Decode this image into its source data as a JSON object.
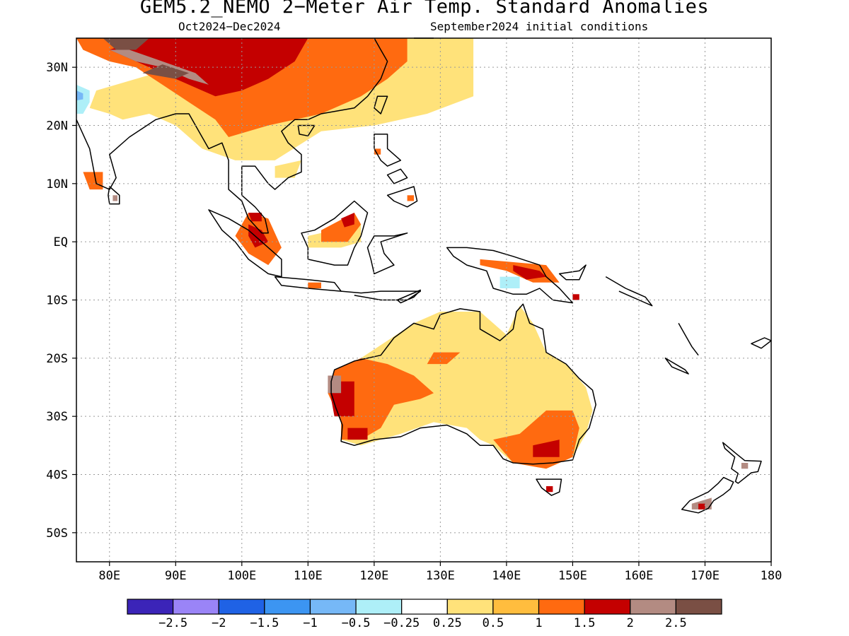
{
  "title": "GEM5.2_NEMO 2−Meter Air Temp. Standard Anomalies",
  "period": "Oct2024−Dec2024",
  "init_conditions": "September2024 initial conditions",
  "lat_labels": [
    "30N",
    "20N",
    "10N",
    "EQ",
    "10S",
    "20S",
    "30S",
    "40S",
    "50S"
  ],
  "lat_values": [
    30,
    20,
    10,
    0,
    -10,
    -20,
    -30,
    -40,
    -50
  ],
  "lon_labels": [
    "80E",
    "90E",
    "100E",
    "110E",
    "120E",
    "130E",
    "140E",
    "150E",
    "160E",
    "170E",
    "180"
  ],
  "lon_values": [
    80,
    90,
    100,
    110,
    120,
    130,
    140,
    150,
    160,
    170,
    180
  ],
  "map_extent": {
    "lon": [
      75,
      180
    ],
    "lat": [
      -55,
      35
    ]
  },
  "colorbar": {
    "colors": [
      "#3b24b8",
      "#9a84f7",
      "#1f62e5",
      "#3c95f2",
      "#76b8f7",
      "#aeeff8",
      "#ffffff",
      "#ffe27a",
      "#ffbd3e",
      "#ff6a10",
      "#c40000",
      "#b38b82",
      "#7a4f44"
    ],
    "labels": [
      "−2.5",
      "−2",
      "−1.5",
      "−1",
      "−0.5",
      "−0.25",
      "0.25",
      "0.5",
      "1",
      "1.5",
      "2",
      "2.5"
    ]
  },
  "legend_meaning": {
    "ne-yellow": "0.25 to 0.5",
    "light-orange": "0.5 to 1",
    "orange": "1 to 1.5",
    "red": "1.5 to 2",
    "rose-brown": "2 to 2.5",
    "dark-brown": "above 2.5",
    "light-blue": "-0.5 to -0.25"
  }
}
